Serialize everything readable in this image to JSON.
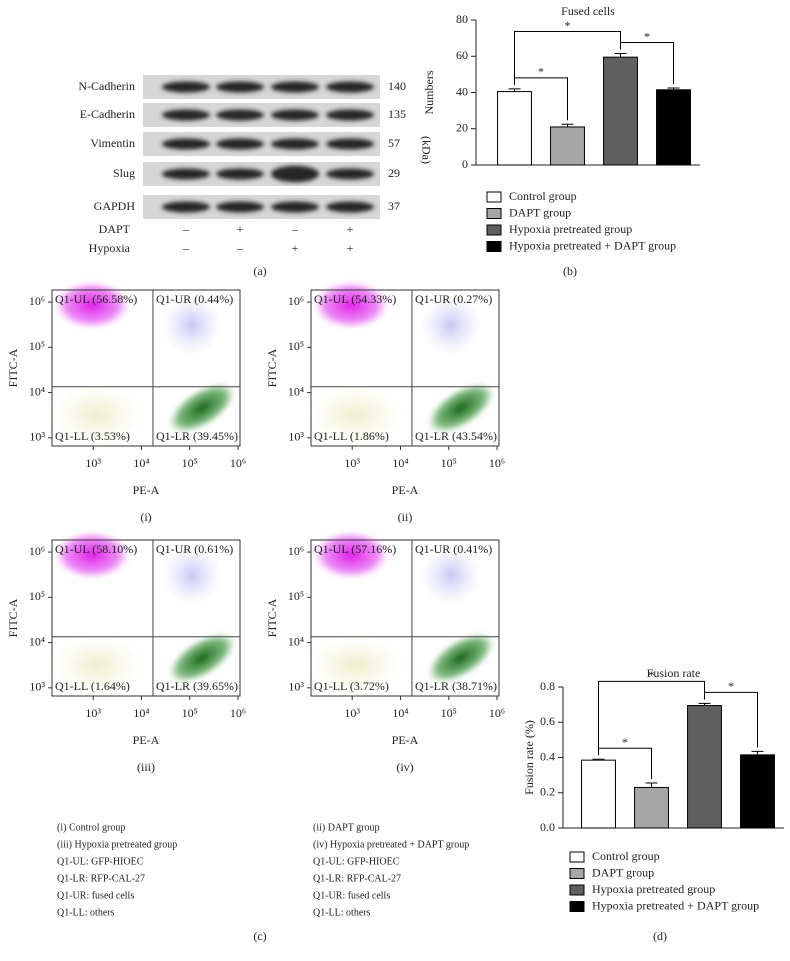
{
  "western_blot": {
    "proteins": [
      {
        "name": "N-Cadherin",
        "kda": 140
      },
      {
        "name": "E-Cadherin",
        "kda": 135
      },
      {
        "name": "Vimentin",
        "kda": 57
      },
      {
        "name": "Slug",
        "kda": 29
      },
      {
        "name": "GAPDH",
        "kda": 37
      }
    ],
    "unit": "(kDa)",
    "conditions": [
      {
        "name": "DAPT",
        "signs": [
          "–",
          "+",
          "–",
          "+"
        ]
      },
      {
        "name": "Hypoxia",
        "signs": [
          "–",
          "–",
          "+",
          "+"
        ]
      }
    ],
    "panel_label": "(a)"
  },
  "chart_data": [
    {
      "type": "bar",
      "title": "Fused cells",
      "y_label": "Numbers",
      "categories": [
        "Control group",
        "DAPT group",
        "Hypoxia pretreated group",
        "Hypoxia pretreated + DAPT group"
      ],
      "values": [
        40.5,
        21,
        59.5,
        41.5
      ],
      "errors": [
        1.5,
        1.5,
        2,
        1
      ],
      "colors": [
        "#ffffff",
        "#a6a6a6",
        "#5f5f5f",
        "#000000"
      ],
      "ylim": [
        0,
        80
      ],
      "yticks": [
        0,
        20,
        40,
        60,
        80
      ],
      "significance": [
        {
          "pair": [
            0,
            1
          ],
          "label": "*"
        },
        {
          "pair": [
            2,
            3
          ],
          "label": "*"
        },
        {
          "pair": [
            0,
            2
          ],
          "label": "*"
        }
      ],
      "panel_label": "(b)"
    },
    {
      "type": "bar",
      "title": "Fusion rate",
      "y_label": "Fusion rate (%)",
      "categories": [
        "Control group",
        "DAPT group",
        "Hypoxia pretreated group",
        "Hypoxia pretreated + DAPT group"
      ],
      "values": [
        0.385,
        0.23,
        0.695,
        0.415
      ],
      "errors": [
        0.005,
        0.025,
        0.012,
        0.02
      ],
      "colors": [
        "#ffffff",
        "#a6a6a6",
        "#5f5f5f",
        "#000000"
      ],
      "ylim": [
        0,
        0.8
      ],
      "yticks": [
        {
          "value": 0,
          "label": "0.0"
        },
        0.2,
        0.4,
        0.6,
        0.8
      ],
      "significance": [
        {
          "pair": [
            0,
            1
          ],
          "label": "*"
        },
        {
          "pair": [
            2,
            3
          ],
          "label": "*"
        },
        {
          "pair": [
            0,
            2
          ],
          "label": "*"
        }
      ],
      "panel_label": "(d)"
    }
  ],
  "flow_cytometry": {
    "x_label": "PE-A",
    "y_label": "FITC-A",
    "log_scale": true,
    "xlim": [
      140,
      1100000
    ],
    "ylim": [
      660,
      1850000
    ],
    "xticks": [
      {
        "value": 1000,
        "label": "10³"
      },
      {
        "value": 10000,
        "label": "10⁴"
      },
      {
        "value": 100000,
        "label": "10⁵"
      },
      {
        "value": 1000000,
        "label": "10⁶"
      }
    ],
    "yticks": [
      {
        "value": 1000,
        "label": "10³"
      },
      {
        "value": 10000,
        "label": "10⁴"
      },
      {
        "value": 100000,
        "label": "10⁵"
      },
      {
        "value": 1000000,
        "label": "10⁶"
      }
    ],
    "panels": [
      {
        "label": "(i)",
        "UL": "Q1-UL (56.58%)",
        "UR": "Q1-UR (0.44%)",
        "LL": "Q1-LL (3.53%)",
        "LR": "Q1-LR (39.45%)"
      },
      {
        "label": "(ii)",
        "UL": "Q1-UL (54.33%)",
        "UR": "Q1-UR (0.27%)",
        "LL": "Q1-LL (1.86%)",
        "LR": "Q1-LR (43.54%)"
      },
      {
        "label": "(iii)",
        "UL": "Q1-UL (58.10%)",
        "UR": "Q1-UR (0.61%)",
        "LL": "Q1-LL (1.64%)",
        "LR": "Q1-LR (39.65%)"
      },
      {
        "label": "(iv)",
        "UL": "Q1-UL (57.16%)",
        "UR": "Q1-UR (0.41%)",
        "LL": "Q1-LL (3.72%)",
        "LR": "Q1-LR (38.71%)"
      }
    ],
    "notes": [
      [
        "(i) Control group",
        "(iii) Hypoxia pretreated group",
        "Q1-UL: GFP-HIOEC",
        "Q1-LR: RFP-CAL-27",
        "Q1-UR: fused cells",
        "Q1-LL: others"
      ],
      [
        "(ii) DAPT group",
        "(iv) Hypoxia pretreated + DAPT group",
        "Q1-UL: GFP-HIOEC",
        "Q1-LR: RFP-CAL-27",
        "Q1-UR: fused cells",
        "Q1-LL: others"
      ]
    ],
    "panel_label": "(c)"
  }
}
